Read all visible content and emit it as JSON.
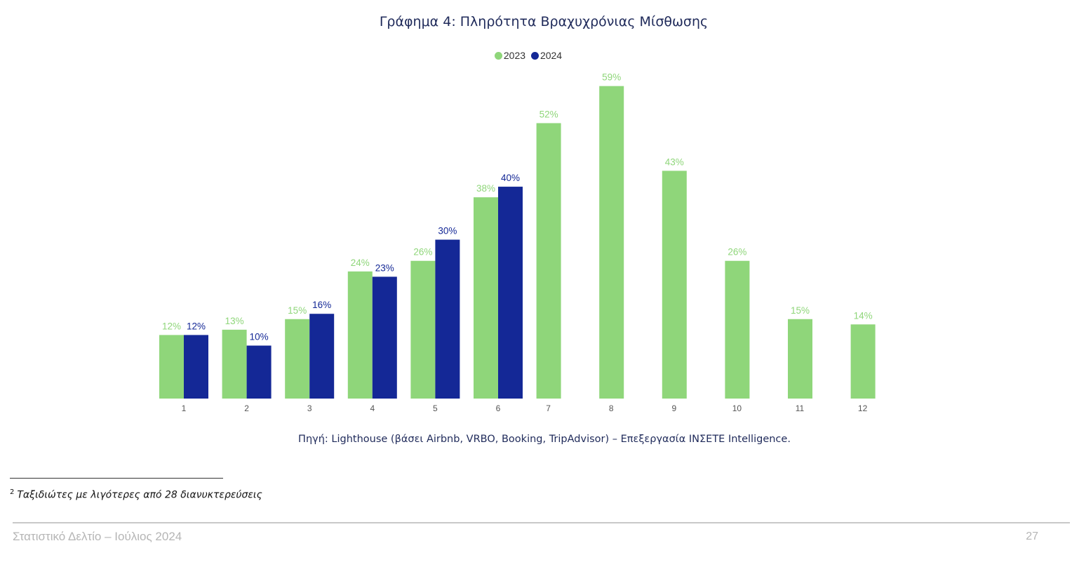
{
  "chart_data": {
    "type": "bar",
    "title": "Γράφημα 4: Πληρότητα Βραχυχρόνιας Μίσθωσης",
    "categories": [
      "1",
      "2",
      "3",
      "4",
      "5",
      "6",
      "7",
      "8",
      "9",
      "10",
      "11",
      "12"
    ],
    "series": [
      {
        "name": "2023",
        "color": "#8fd67a",
        "values": [
          12,
          13,
          15,
          24,
          26,
          38,
          52,
          59,
          43,
          26,
          15,
          14
        ]
      },
      {
        "name": "2024",
        "color": "#142896",
        "values": [
          12,
          10,
          16,
          23,
          30,
          40,
          null,
          null,
          null,
          null,
          null,
          null
        ]
      }
    ],
    "value_suffix": "%",
    "ylim": [
      0,
      62
    ],
    "xlabel": "",
    "ylabel": "",
    "grid": false,
    "legend_position": "top-center",
    "data_labels": true
  },
  "source": "Πηγή: Lighthouse (βάσει Airbnb, VRBO, Booking, TripAdvisor) – Επεξεργασία ΙΝΣΕΤΕ Intelligence.",
  "footnote": {
    "marker": "2",
    "text": "Ταξιδιώτες με λιγότερες από 28 διανυκτερεύσεις"
  },
  "page_footer": "Στατιστικό Δελτίο – Ιούλιος 2024",
  "page_number": "27"
}
